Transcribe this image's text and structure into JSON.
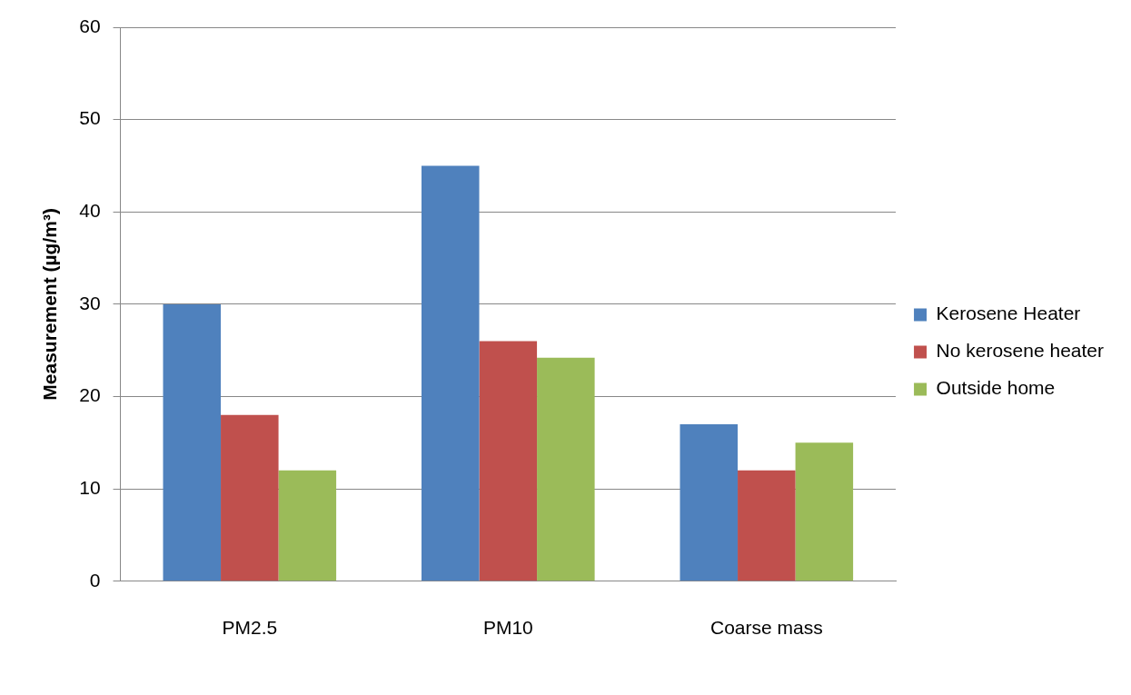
{
  "chart_data": {
    "type": "bar",
    "ylabel": "Measurement (µg/m³)",
    "categories": [
      "PM2.5",
      "PM10",
      "Coarse mass"
    ],
    "series": [
      {
        "name": "Kerosene Heater",
        "color": "#4f81bd",
        "values": [
          30,
          45,
          17
        ]
      },
      {
        "name": "No kerosene heater",
        "color": "#c0504d",
        "values": [
          18,
          26,
          12
        ]
      },
      {
        "name": "Outside home",
        "color": "#9bbb59",
        "values": [
          12,
          24.2,
          15
        ]
      }
    ],
    "ylim": [
      0,
      60
    ],
    "yticks": [
      0,
      10,
      20,
      30,
      40,
      50,
      60
    ],
    "grid": "y",
    "legend": "right"
  }
}
